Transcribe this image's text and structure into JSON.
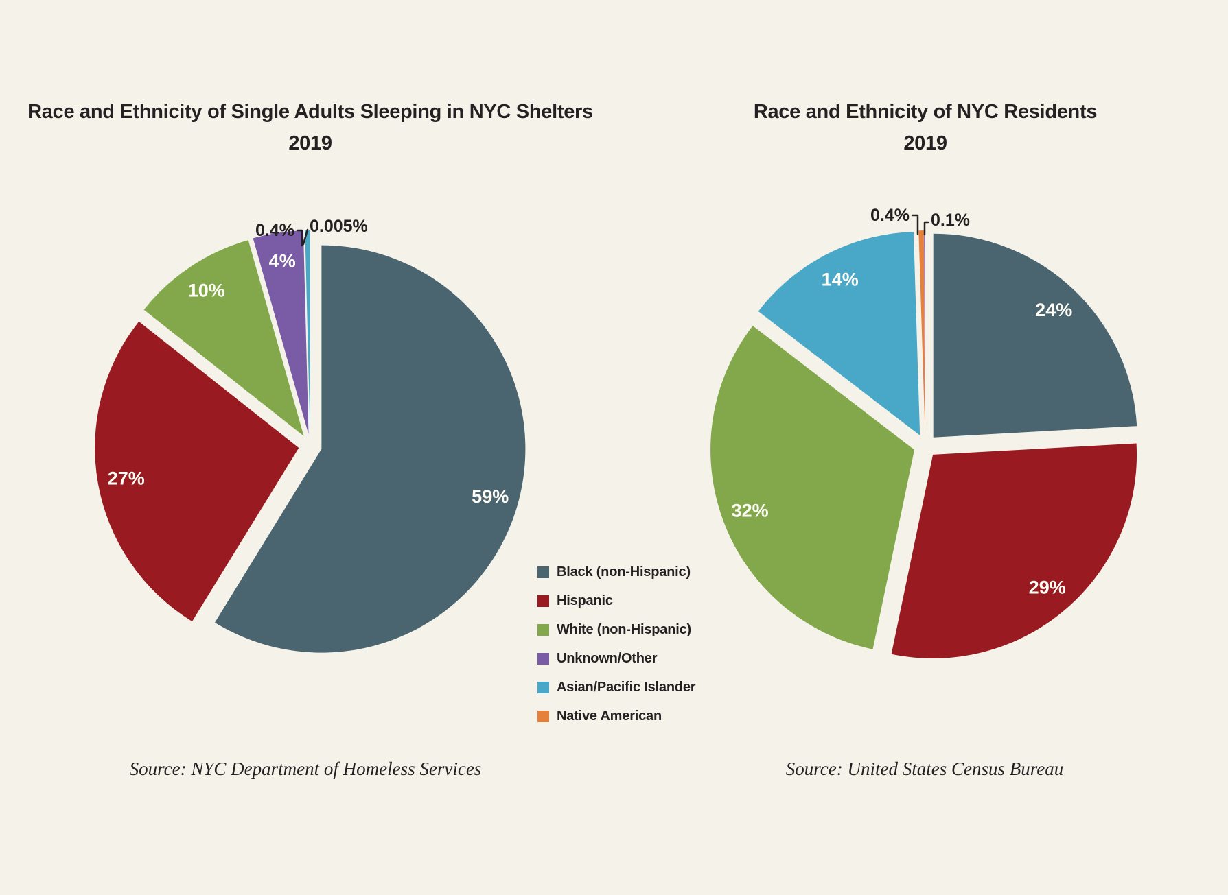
{
  "page": {
    "background_color": "#f5f3e9",
    "text_color": "#242122",
    "inside_label_color": "#fdfcf5"
  },
  "palette": {
    "black_non_hispanic": "#4a6470",
    "hispanic": "#991b21",
    "white_non_hispanic": "#82a84b",
    "unknown_other": "#7a5ba5",
    "asian_pacific_islander": "#49a8c7",
    "native_american": "#e5813a"
  },
  "legend": {
    "items": [
      {
        "label": "Black (non-Hispanic)",
        "color": "#4a6470"
      },
      {
        "label": "Hispanic",
        "color": "#991b21"
      },
      {
        "label": "White (non-Hispanic)",
        "color": "#82a84b"
      },
      {
        "label": "Unknown/Other",
        "color": "#7a5ba5"
      },
      {
        "label": "Asian/Pacific Islander",
        "color": "#49a8c7"
      },
      {
        "label": "Native American",
        "color": "#e5813a"
      }
    ]
  },
  "chart_data": [
    {
      "type": "pie",
      "title": "Race and Ethnicity of Single Adults Sleeping in NYC Shelters",
      "subtitle": "2019",
      "source": "Source: NYC Department of Homeless Services",
      "direction": "clockwise",
      "start_angle": "12 o'clock",
      "exploded": true,
      "legend_position": "right-of-chart",
      "slices": [
        {
          "category": "Black (non-Hispanic)",
          "value": 59,
          "display": "59%",
          "color": "#4a6470",
          "label_placement": "inside"
        },
        {
          "category": "Hispanic",
          "value": 27,
          "display": "27%",
          "color": "#991b21",
          "label_placement": "inside"
        },
        {
          "category": "White (non-Hispanic)",
          "value": 10,
          "display": "10%",
          "color": "#82a84b",
          "label_placement": "inside"
        },
        {
          "category": "Unknown/Other",
          "value": 4,
          "display": "4%",
          "color": "#7a5ba5",
          "label_placement": "inside"
        },
        {
          "category": "Asian/Pacific Islander",
          "value": 0.4,
          "display": "0.4%",
          "color": "#49a8c7",
          "label_placement": "outside"
        },
        {
          "category": "Native American",
          "value": 0.005,
          "display": "0.005%",
          "color": "#e5813a",
          "label_placement": "outside"
        }
      ]
    },
    {
      "type": "pie",
      "title": "Race and Ethnicity of NYC Residents",
      "subtitle": "2019",
      "source": "Source: United States Census Bureau",
      "direction": "clockwise",
      "start_angle": "12 o'clock",
      "exploded": true,
      "legend_position": "shared",
      "slices": [
        {
          "category": "Black (non-Hispanic)",
          "value": 24,
          "display": "24%",
          "color": "#4a6470",
          "label_placement": "inside"
        },
        {
          "category": "Hispanic",
          "value": 29,
          "display": "29%",
          "color": "#991b21",
          "label_placement": "inside"
        },
        {
          "category": "White (non-Hispanic)",
          "value": 32,
          "display": "32%",
          "color": "#82a84b",
          "label_placement": "inside"
        },
        {
          "category": "Asian/Pacific Islander",
          "value": 14,
          "display": "14%",
          "color": "#49a8c7",
          "label_placement": "inside"
        },
        {
          "category": "Native American",
          "value": 0.4,
          "display": "0.4%",
          "color": "#e5813a",
          "label_placement": "outside"
        },
        {
          "category": "Unknown/Other",
          "value": 0.1,
          "display": "0.1%",
          "color": "#7a5ba5",
          "label_placement": "outside"
        }
      ]
    }
  ]
}
